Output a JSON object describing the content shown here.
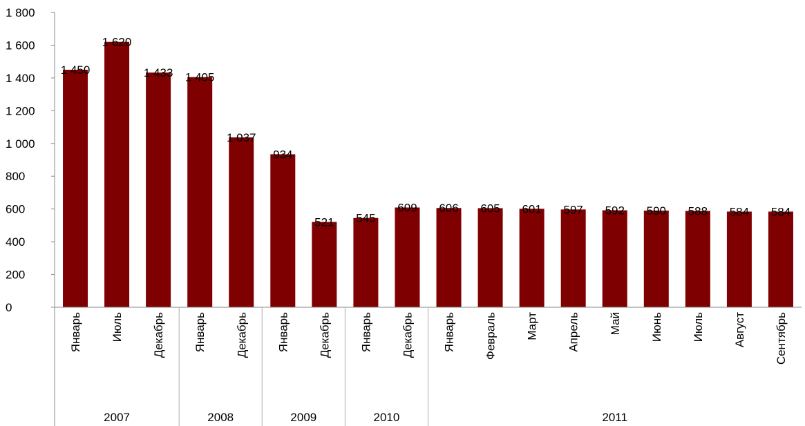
{
  "chart_data": {
    "type": "bar",
    "title": "",
    "xlabel": "",
    "ylabel": "",
    "ylim": [
      0,
      1800
    ],
    "yticks": [
      0,
      200,
      400,
      600,
      800,
      1000,
      1200,
      1400,
      1600,
      1800
    ],
    "ytick_labels": [
      "0",
      "200",
      "400",
      "600",
      "800",
      "1 000",
      "1 200",
      "1 400",
      "1 600",
      "1 800"
    ],
    "grid": false,
    "legend": "none",
    "bar_color": "#7f0000",
    "categories": [
      "Январь",
      "Июль",
      "Декабрь",
      "Январь",
      "Декабрь",
      "Январь",
      "Декабрь",
      "Январь",
      "Декабрь",
      "Январь",
      "Февраль",
      "Март",
      "Апрель",
      "Май",
      "Июнь",
      "Июль",
      "Август",
      "Сентябрь"
    ],
    "values": [
      1450,
      1620,
      1433,
      1405,
      1037,
      934,
      521,
      545,
      609,
      606,
      605,
      601,
      597,
      592,
      590,
      588,
      584,
      584
    ],
    "value_labels": [
      "1 450",
      "1 620",
      "1 433",
      "1 405",
      "1 037",
      "934",
      "521",
      "545",
      "609",
      "606",
      "605",
      "601",
      "597",
      "592",
      "590",
      "588",
      "584",
      "584"
    ],
    "groups": [
      {
        "label": "2007",
        "count": 3
      },
      {
        "label": "2008",
        "count": 2
      },
      {
        "label": "2009",
        "count": 2
      },
      {
        "label": "2010",
        "count": 2
      },
      {
        "label": "2011",
        "count": 9
      }
    ]
  }
}
